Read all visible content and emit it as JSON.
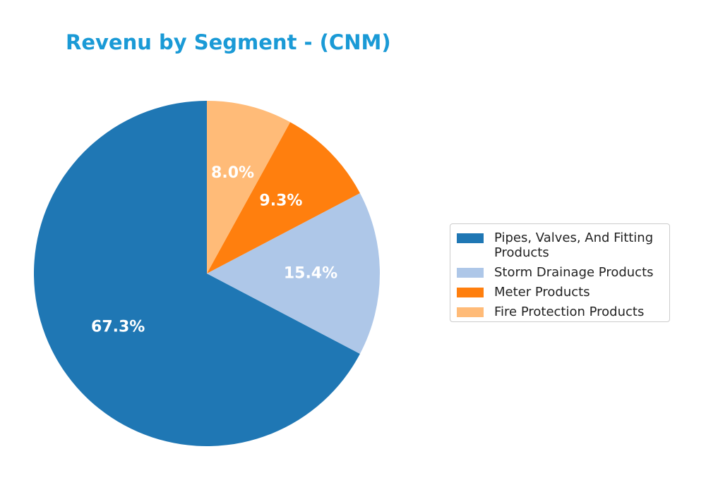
{
  "title": "Revenu by Segment - (CNM)",
  "title_color": "#1a9ad6",
  "chart_data": {
    "type": "pie",
    "title": "Revenu by Segment - (CNM)",
    "start_angle_deg": 90,
    "direction": "counterclockwise",
    "legend_position": "right",
    "slices": [
      {
        "label": "Pipes, Valves, And Fitting\nProducts",
        "value": 67.3,
        "display": "67.3%",
        "color": "#1f77b4"
      },
      {
        "label": "Storm Drainage Products",
        "value": 15.4,
        "display": "15.4%",
        "color": "#aec7e8"
      },
      {
        "label": "Meter Products",
        "value": 9.3,
        "display": "9.3%",
        "color": "#ff7f0e"
      },
      {
        "label": "Fire Protection Products",
        "value": 8.0,
        "display": "8.0%",
        "color": "#ffbb78"
      }
    ]
  }
}
